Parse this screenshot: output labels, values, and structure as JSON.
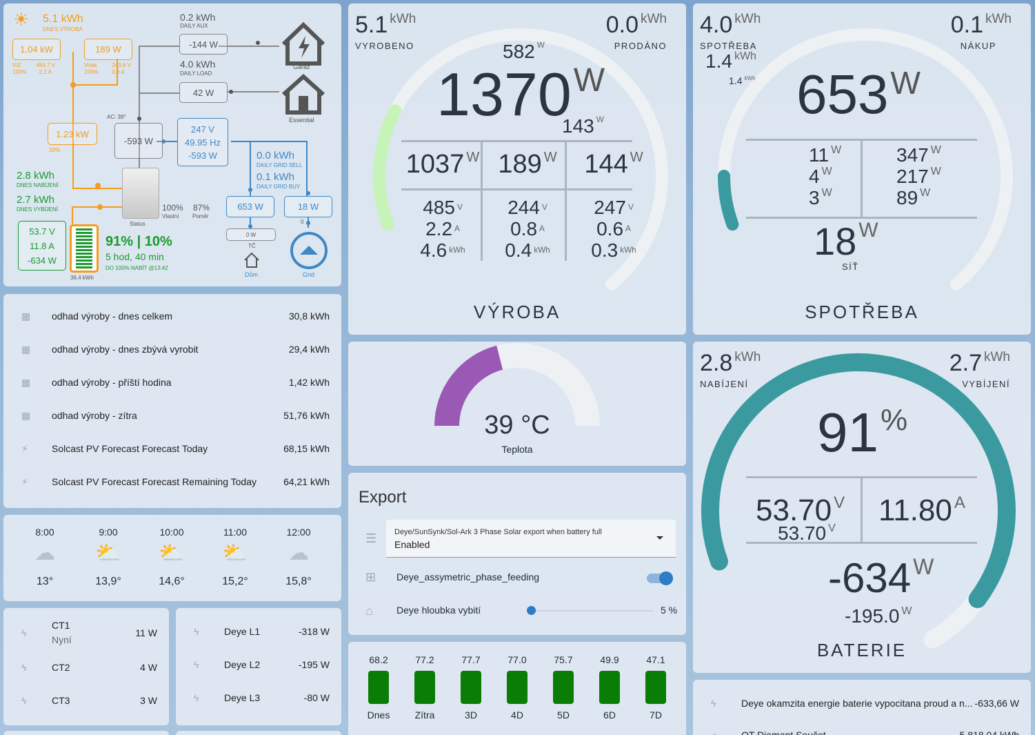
{
  "flow": {
    "solar_today": "5.1 kWh",
    "solar_today_lbl": "DNES VÝROBA",
    "pv1": "1.04 kW",
    "pv1_name": "V/Z",
    "pv1_v": "484.7 V",
    "pv1_pct": "100%",
    "pv1_a": "2.2 A",
    "pv2": "189 W",
    "pv2_name": "Voda",
    "pv2_v": "243.8 V",
    "pv2_pct": "100%",
    "pv2_a": "0.8 A",
    "aux_kwh": "0.2 kWh",
    "aux_lbl": "DAILY AUX",
    "aux_w": "-144 W",
    "garage": "Garáž",
    "load_kwh": "4.0 kWh",
    "load_lbl": "DAILY LOAD",
    "load_w": "42 W",
    "essential": "Essential",
    "pv_total": "1.23 kW",
    "pv_total_pct": "10%",
    "ac_temp": "AC: 39°",
    "inv_w": "-593 W",
    "grid_v": "247 V",
    "grid_hz": "49.95 Hz",
    "grid_w": "-593 W",
    "sell_kwh": "0.0 kWh",
    "sell_lbl": "DAILY GRID SELL",
    "buy_kwh": "0.1 kWh",
    "buy_lbl": "DAILY GRID BUY",
    "charge_kwh": "2.8 kWh",
    "charge_lbl": "DNES NABÍJENÍ",
    "discharge_kwh": "2.7 kWh",
    "discharge_lbl": "DNES VYBÍJENÍ",
    "self_pct": "100%",
    "self_lbl": "Vlastní",
    "ratio_pct": "87%",
    "ratio_lbl": "Poměr",
    "status": "Status",
    "house_w": "653 W",
    "grid_box_w": "18 W",
    "tc_w": "0 W",
    "tc": "TČ",
    "dum": "Dům",
    "grid_zero": "0",
    "grid_lbl": "Grid",
    "batt_v": "53.7 V",
    "batt_a": "11.8 A",
    "batt_w": "-634 W",
    "batt_cap": "36.4 kWh",
    "soc": "91% | 10%",
    "runtime": "5 hod, 40 min",
    "full_at": "DO 100% NABÍT @13:42"
  },
  "forecast": [
    {
      "name": "odhad výroby - dnes celkem",
      "value": "30,8 kWh"
    },
    {
      "name": "odhad výroby - dnes zbývá vyrobit",
      "value": "29,4 kWh"
    },
    {
      "name": "odhad výroby - příští hodina",
      "value": "1,42 kWh"
    },
    {
      "name": "odhad výroby - zítra",
      "value": "51,76 kWh"
    },
    {
      "name": "Solcast PV Forecast Forecast Today",
      "value": "68,15 kWh"
    },
    {
      "name": "Solcast PV Forecast Forecast Remaining Today",
      "value": "64,21 kWh"
    }
  ],
  "weather": [
    {
      "time": "8:00",
      "temp": "13°",
      "icon": "cloudy-icon"
    },
    {
      "time": "9:00",
      "temp": "13,9°",
      "icon": "partly-sunny-icon"
    },
    {
      "time": "10:00",
      "temp": "14,6°",
      "icon": "partly-sunny-icon"
    },
    {
      "time": "11:00",
      "temp": "15,2°",
      "icon": "partly-sunny-icon"
    },
    {
      "time": "12:00",
      "temp": "15,8°",
      "icon": "cloudy-icon"
    }
  ],
  "ct": [
    {
      "name": "CT1",
      "sub": "Nyní",
      "value": "11 W"
    },
    {
      "name": "CT2",
      "value": "4 W"
    },
    {
      "name": "CT3",
      "value": "3 W"
    }
  ],
  "deye": [
    {
      "name": "Deye L1",
      "value": "-318 W"
    },
    {
      "name": "Deye L2",
      "value": "-195 W"
    },
    {
      "name": "Deye L3",
      "value": "-80 W"
    }
  ],
  "vyroba": {
    "left_val": "5.1",
    "left_unit": "kWh",
    "left_lbl": "VYROBENO",
    "right_val": "0.0",
    "right_unit": "kWh",
    "right_lbl": "PRODÁNO",
    "top_small": "582",
    "main": "1370",
    "main_unit": "W",
    "below": "143",
    "cols": [
      {
        "w": "1037",
        "v": "485",
        "a": "2.2",
        "kwh": "4.6"
      },
      {
        "w": "189",
        "v": "244",
        "a": "0.8",
        "kwh": "0.4"
      },
      {
        "w": "144",
        "v": "247",
        "a": "0.6",
        "kwh": "0.3"
      }
    ],
    "title": "VÝROBA",
    "u_w": "W",
    "u_v": "V",
    "u_a": "A",
    "u_kwh": "kWh",
    "level": 0.19,
    "color": "#c6f3b8"
  },
  "spotreba": {
    "left_val": "4.0",
    "left_unit": "kWh",
    "left_lbl": "SPOTŘEBA",
    "left2": "1.4",
    "left2_unit": "kWh",
    "left3": "1.4",
    "left3_unit": "kWh",
    "right_val": "0.1",
    "right_unit": "kWh",
    "right_lbl": "NÁKUP",
    "main": "653",
    "main_unit": "W",
    "l": [
      "11",
      "4",
      "3"
    ],
    "r": [
      "347",
      "217",
      "89"
    ],
    "grid": "18",
    "grid_unit": "W",
    "grid_lbl": "SÍŤ",
    "title": "SPOTŘEBA",
    "level": 0.08,
    "color": "#3a9aa0"
  },
  "teplota": {
    "value": "39 °C",
    "label": "Teplota",
    "level": 0.42,
    "color": "#9b59b6"
  },
  "export": {
    "title": "Export",
    "select_label": "Deye/SunSynk/Sol-Ark 3 Phase Solar export when battery full",
    "select_value": "Enabled",
    "toggle_label": "Deye_assymetric_phase_feeding",
    "slider_label": "Deye hloubka vybití",
    "slider_value": "5 %"
  },
  "baterie": {
    "left_val": "2.8",
    "left_unit": "kWh",
    "left_lbl": "NABÍJENÍ",
    "right_val": "2.7",
    "right_unit": "kWh",
    "right_lbl": "VYBÍJENÍ",
    "main": "91",
    "main_unit": "%",
    "v": "53.70",
    "v_unit": "V",
    "v2": "53.70",
    "v2_unit": "V",
    "a": "11.80",
    "a_unit": "A",
    "w": "-634",
    "w_unit": "W",
    "w2": "-195.0",
    "w2_unit": "W",
    "title": "BATERIE",
    "level": 0.91,
    "color": "#3a9aa0"
  },
  "daily_forecast": [
    {
      "value": "68.2",
      "label": "Dnes"
    },
    {
      "value": "77.2",
      "label": "Zítra"
    },
    {
      "value": "77.7",
      "label": "3D"
    },
    {
      "value": "77.0",
      "label": "4D"
    },
    {
      "value": "75.7",
      "label": "5D"
    },
    {
      "value": "49.9",
      "label": "6D"
    },
    {
      "value": "47.1",
      "label": "7D"
    }
  ],
  "bottom_list": [
    {
      "name": "Deye okamzita energie baterie vypocitana proud a n...",
      "value": "-633,66 W"
    },
    {
      "name": "OT Diamant Součet",
      "value": "5 818,04 kWh"
    }
  ]
}
